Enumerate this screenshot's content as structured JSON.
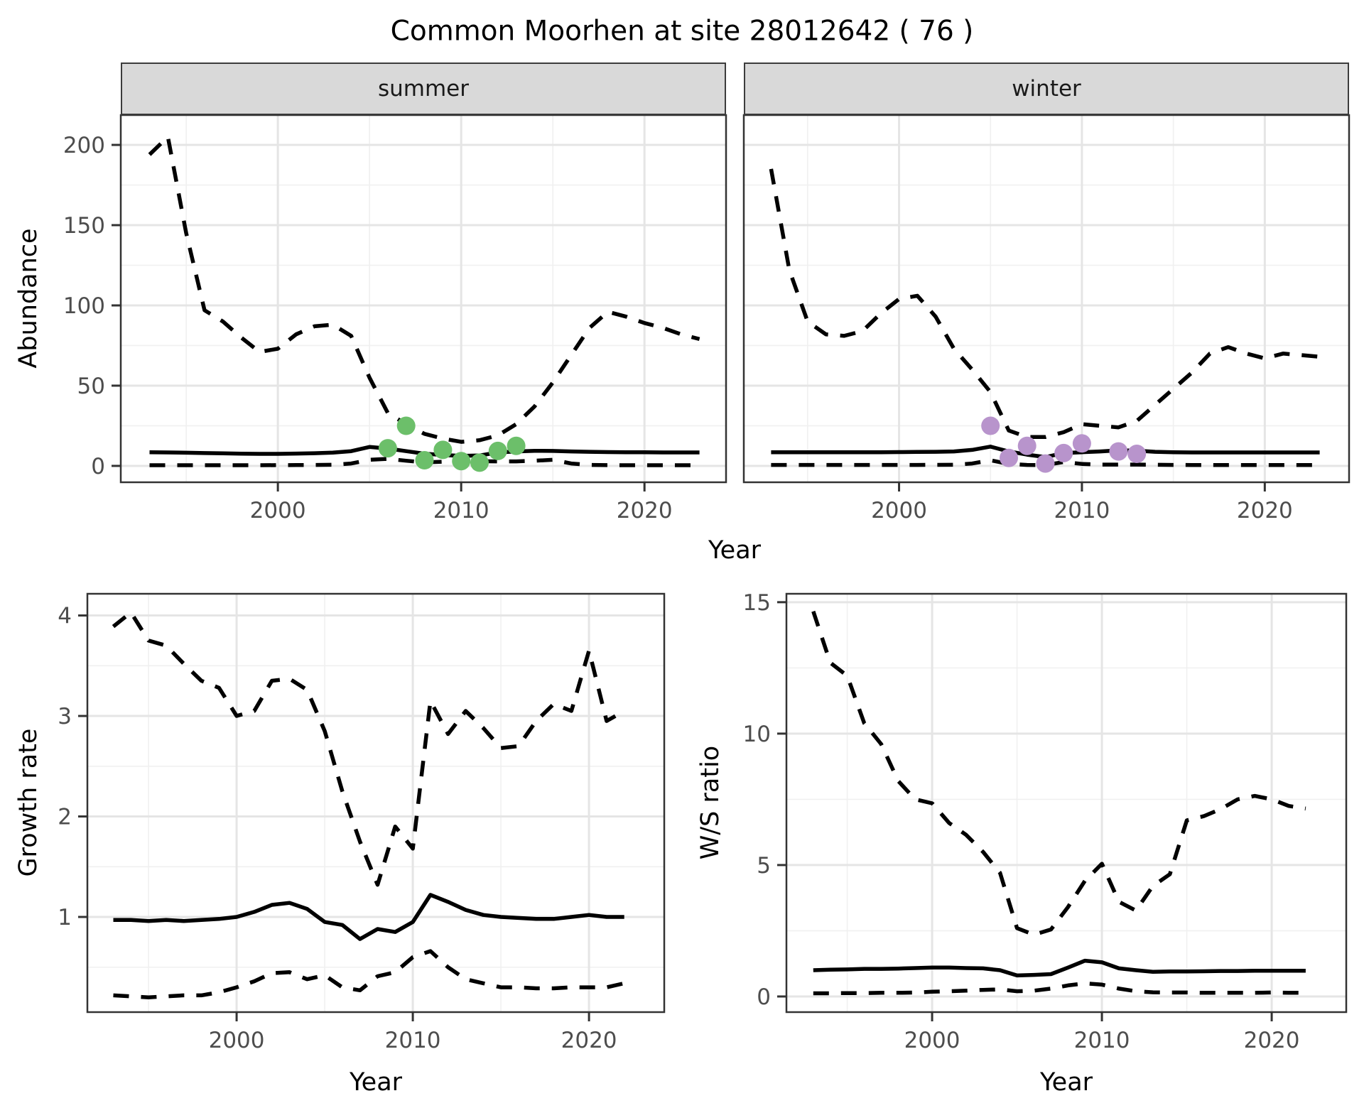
{
  "title": "Common Moorhen at site 28012642 ( 76 )",
  "shared": {
    "top_xlabel": "Year",
    "top_ylabel": "Abundance"
  },
  "colors": {
    "summer_points": "#6cbf6a",
    "winter_points": "#b894cc",
    "line": "#000000",
    "strip_bg": "#d9d9d9",
    "grid_major": "#e5e5e5",
    "grid_minor": "#f0f0f0",
    "axis_text": "#4d4d4d",
    "panel_border": "#333333"
  },
  "chart_data": [
    {
      "id": "abundance-summer",
      "type": "line",
      "facet_label": "summer",
      "xlabel": "Year",
      "ylabel": "Abundance",
      "grid": true,
      "legend": "none",
      "xlim": [
        1991.43,
        2024.45
      ],
      "ylim": [
        -10.2,
        218.6
      ],
      "xticks": [
        2000,
        2010,
        2020
      ],
      "xticks_minor": [
        1995,
        2005,
        2015
      ],
      "yticks": [
        0,
        50,
        100,
        150,
        200
      ],
      "yticks_minor": [
        25,
        75,
        125,
        175
      ],
      "x": [
        1993,
        1994,
        1995,
        1996,
        1997,
        1998,
        1999,
        2000,
        2001,
        2002,
        2003,
        2004,
        2005,
        2006,
        2007,
        2008,
        2009,
        2010,
        2011,
        2012,
        2013,
        2014,
        2015,
        2016,
        2017,
        2018,
        2019,
        2020,
        2021,
        2022,
        2023
      ],
      "series": [
        {
          "name": "upper_ci",
          "style": "dashed",
          "values": [
            194,
            205,
            145,
            97,
            90,
            80,
            71,
            73,
            82,
            87,
            88,
            81,
            55,
            33,
            26,
            20,
            17,
            15,
            16,
            19,
            26,
            37,
            52,
            69,
            86,
            96,
            93,
            89,
            86,
            82,
            79
          ]
        },
        {
          "name": "median",
          "style": "solid",
          "values": [
            8.5,
            8.4,
            8.2,
            8.0,
            7.8,
            7.6,
            7.5,
            7.5,
            7.7,
            7.9,
            8.3,
            9.2,
            11.8,
            10.8,
            9.2,
            7.6,
            6.8,
            6.2,
            6.5,
            8.4,
            9.0,
            9.4,
            9.3,
            9.0,
            8.8,
            8.6,
            8.5,
            8.5,
            8.4,
            8.4,
            8.4
          ]
        },
        {
          "name": "lower_ci",
          "style": "dashed",
          "values": [
            0.4,
            0.4,
            0.4,
            0.4,
            0.4,
            0.4,
            0.4,
            0.45,
            0.5,
            0.55,
            0.7,
            1.5,
            3.8,
            4.4,
            3.2,
            2.2,
            2.6,
            3.0,
            2.9,
            2.8,
            2.8,
            3.2,
            3.8,
            1.5,
            0.6,
            0.45,
            0.4,
            0.4,
            0.4,
            0.4,
            0.4
          ]
        }
      ],
      "points": {
        "name": "observed-counts-summer",
        "color": "#6cbf6a",
        "x": [
          2006,
          2007,
          2008,
          2009,
          2010,
          2011,
          2012,
          2013
        ],
        "y": [
          11,
          25,
          3.5,
          10,
          3,
          2,
          9.3,
          12.5
        ]
      }
    },
    {
      "id": "abundance-winter",
      "type": "line",
      "facet_label": "winter",
      "xlabel": "Year",
      "ylabel": "Abundance",
      "grid": true,
      "legend": "none",
      "xlim": [
        1991.51,
        2024.61
      ],
      "ylim": [
        -10.2,
        218.6
      ],
      "xticks": [
        2000,
        2010,
        2020
      ],
      "xticks_minor": [
        1995,
        2005,
        2015
      ],
      "yticks": [
        0,
        50,
        100,
        150,
        200
      ],
      "yticks_minor": [
        25,
        75,
        125,
        175
      ],
      "x": [
        1993,
        1994,
        1995,
        1996,
        1997,
        1998,
        1999,
        2000,
        2001,
        2002,
        2003,
        2004,
        2005,
        2006,
        2007,
        2008,
        2009,
        2010,
        2011,
        2012,
        2013,
        2014,
        2015,
        2016,
        2017,
        2018,
        2019,
        2020,
        2021,
        2022,
        2023
      ],
      "series": [
        {
          "name": "upper_ci",
          "style": "dashed",
          "values": [
            185,
            122,
            90,
            82,
            81,
            84,
            95,
            104,
            106,
            93,
            73,
            60,
            46,
            22,
            18,
            18,
            21,
            26,
            25,
            24,
            28,
            38,
            48,
            58,
            70,
            74,
            70,
            67,
            70,
            69,
            68
          ]
        },
        {
          "name": "median",
          "style": "solid",
          "values": [
            8.5,
            8.5,
            8.5,
            8.5,
            8.5,
            8.5,
            8.5,
            8.6,
            8.7,
            8.8,
            9.0,
            10.0,
            12.0,
            9.0,
            7.0,
            5.5,
            8.0,
            8.5,
            9.0,
            9.7,
            9.5,
            8.8,
            8.5,
            8.4,
            8.4,
            8.4,
            8.4,
            8.4,
            8.4,
            8.4,
            8.4
          ]
        },
        {
          "name": "lower_ci",
          "style": "dashed",
          "values": [
            0.6,
            0.6,
            0.6,
            0.6,
            0.6,
            0.6,
            0.6,
            0.6,
            0.6,
            0.65,
            0.7,
            1.5,
            3.5,
            1.2,
            0.6,
            0.5,
            2.4,
            1.2,
            0.8,
            0.8,
            0.8,
            0.7,
            0.6,
            0.55,
            0.55,
            0.55,
            0.55,
            0.55,
            0.55,
            0.55,
            0.55
          ]
        }
      ],
      "points": {
        "name": "observed-counts-winter",
        "color": "#b894cc",
        "x": [
          2005,
          2006,
          2007,
          2008,
          2009,
          2010,
          2012,
          2013
        ],
        "y": [
          25,
          5,
          12.5,
          1.5,
          8,
          14,
          9,
          7.5
        ]
      }
    },
    {
      "id": "growth-rate",
      "type": "line",
      "facet_label": null,
      "xlabel": "Year",
      "ylabel": "Growth rate",
      "grid": true,
      "legend": "none",
      "xlim": [
        1991.53,
        2024.27
      ],
      "ylim": [
        0.053,
        4.216
      ],
      "xticks": [
        2000,
        2010,
        2020
      ],
      "xticks_minor": [
        1995,
        2005,
        2015
      ],
      "yticks": [
        1,
        2,
        3,
        4
      ],
      "yticks_minor": [
        0.5,
        1.5,
        2.5,
        3.5
      ],
      "x": [
        1993,
        1994,
        1995,
        1996,
        1997,
        1998,
        1999,
        2000,
        2001,
        2002,
        2003,
        2004,
        2005,
        2006,
        2007,
        2008,
        2009,
        2010,
        2011,
        2012,
        2013,
        2014,
        2015,
        2016,
        2017,
        2018,
        2019,
        2020,
        2021,
        2022
      ],
      "series": [
        {
          "name": "upper_ci",
          "style": "dashed",
          "values": [
            3.89,
            4.03,
            3.75,
            3.7,
            3.52,
            3.35,
            3.28,
            3.0,
            3.05,
            3.35,
            3.37,
            3.26,
            2.85,
            2.25,
            1.75,
            1.32,
            1.9,
            1.68,
            3.15,
            2.82,
            3.05,
            2.88,
            2.68,
            2.7,
            2.95,
            3.12,
            3.05,
            3.65,
            2.95,
            3.05
          ]
        },
        {
          "name": "median",
          "style": "solid",
          "values": [
            0.97,
            0.97,
            0.96,
            0.97,
            0.96,
            0.97,
            0.98,
            1.0,
            1.05,
            1.12,
            1.14,
            1.08,
            0.95,
            0.92,
            0.78,
            0.88,
            0.85,
            0.95,
            1.22,
            1.15,
            1.07,
            1.02,
            1.0,
            0.99,
            0.98,
            0.98,
            1.0,
            1.02,
            1.0,
            1.0
          ]
        },
        {
          "name": "lower_ci",
          "style": "dashed",
          "values": [
            0.22,
            0.21,
            0.2,
            0.21,
            0.22,
            0.22,
            0.25,
            0.3,
            0.36,
            0.44,
            0.45,
            0.38,
            0.42,
            0.3,
            0.27,
            0.41,
            0.45,
            0.6,
            0.66,
            0.5,
            0.38,
            0.34,
            0.3,
            0.3,
            0.29,
            0.29,
            0.3,
            0.3,
            0.3,
            0.34
          ]
        }
      ],
      "points": null
    },
    {
      "id": "ws-ratio",
      "type": "line",
      "facet_label": null,
      "xlabel": "Year",
      "ylabel": "W/S ratio",
      "grid": true,
      "legend": "none",
      "xlim": [
        1991.42,
        2024.39
      ],
      "ylim": [
        -0.595,
        15.32
      ],
      "xticks": [
        2000,
        2010,
        2020
      ],
      "xticks_minor": [
        1995,
        2005,
        2015
      ],
      "yticks": [
        0,
        5,
        10,
        15
      ],
      "yticks_minor": [
        2.5,
        7.5,
        12.5
      ],
      "x": [
        1993,
        1994,
        1995,
        1996,
        1997,
        1998,
        1999,
        2000,
        2001,
        2002,
        2003,
        2004,
        2005,
        2006,
        2007,
        2008,
        2009,
        2010,
        2011,
        2012,
        2013,
        2014,
        2015,
        2016,
        2017,
        2018,
        2019,
        2020,
        2021,
        2022
      ],
      "series": [
        {
          "name": "upper_ci",
          "style": "dashed",
          "values": [
            14.65,
            12.7,
            12.2,
            10.4,
            9.6,
            8.2,
            7.5,
            7.35,
            6.6,
            6.15,
            5.5,
            4.7,
            2.6,
            2.35,
            2.55,
            3.4,
            4.4,
            5.05,
            3.6,
            3.27,
            4.2,
            4.65,
            6.7,
            6.86,
            7.13,
            7.5,
            7.63,
            7.5,
            7.25,
            7.15
          ]
        },
        {
          "name": "median",
          "style": "solid",
          "values": [
            1.0,
            1.02,
            1.03,
            1.05,
            1.05,
            1.06,
            1.08,
            1.1,
            1.1,
            1.08,
            1.07,
            1.0,
            0.8,
            0.82,
            0.85,
            1.1,
            1.36,
            1.3,
            1.07,
            1.0,
            0.94,
            0.95,
            0.95,
            0.96,
            0.97,
            0.97,
            0.98,
            0.98,
            0.98,
            0.98
          ]
        },
        {
          "name": "lower_ci",
          "style": "dashed",
          "values": [
            0.12,
            0.12,
            0.13,
            0.13,
            0.14,
            0.14,
            0.15,
            0.18,
            0.2,
            0.22,
            0.25,
            0.27,
            0.2,
            0.22,
            0.3,
            0.42,
            0.5,
            0.45,
            0.3,
            0.2,
            0.16,
            0.15,
            0.15,
            0.14,
            0.14,
            0.14,
            0.14,
            0.15,
            0.14,
            0.14
          ]
        }
      ],
      "points": null
    }
  ]
}
